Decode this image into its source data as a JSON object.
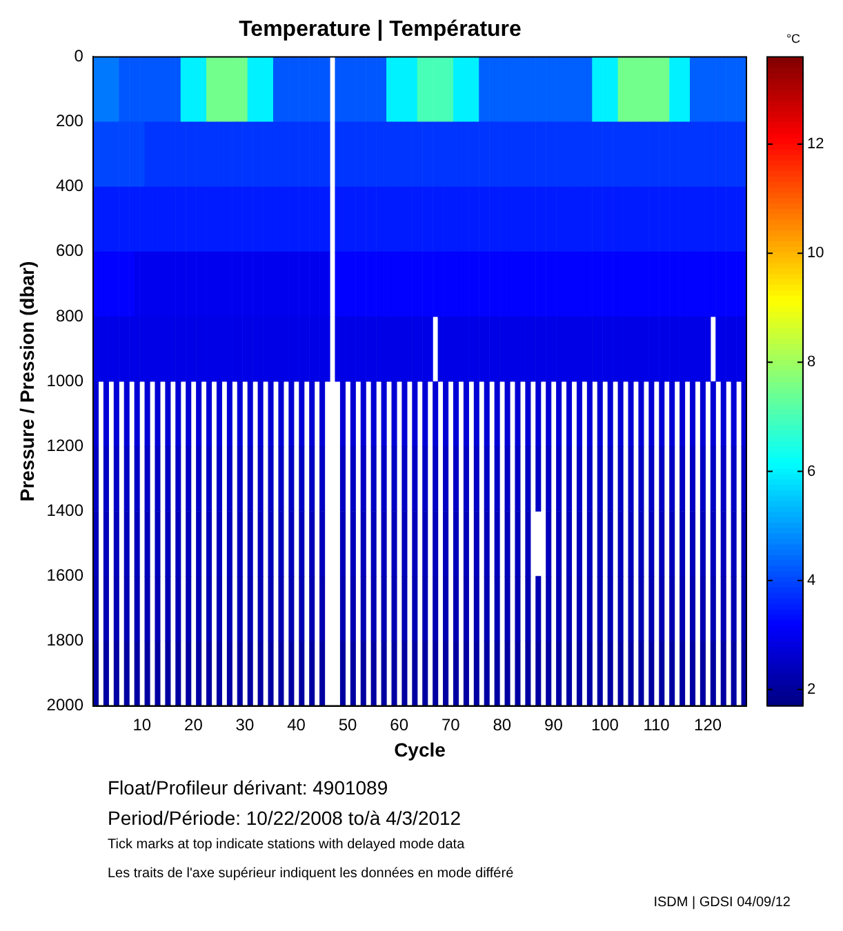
{
  "chart_data": {
    "type": "heatmap",
    "title": "Temperature | Température",
    "xlabel": "Cycle",
    "ylabel": "Pressure / Pression (dbar)",
    "clabel": "°C",
    "categories": [
      null,
      null,
      null,
      null,
      null,
      null,
      null,
      null,
      null,
      "10",
      null,
      null,
      null,
      null,
      null,
      null,
      null,
      null,
      null,
      "20",
      null,
      null,
      null,
      null,
      null,
      null,
      null,
      null,
      null,
      "30",
      null,
      null,
      null,
      null,
      null,
      null,
      null,
      null,
      null,
      "40",
      null,
      null,
      null,
      null,
      null,
      null,
      null,
      null,
      null,
      "50",
      null,
      null,
      null,
      null,
      null,
      null,
      null,
      null,
      null,
      "60",
      null,
      null,
      null,
      null,
      null,
      null,
      null,
      null,
      null,
      "70",
      null,
      null,
      null,
      null,
      null,
      null,
      null,
      null,
      null,
      "80",
      null,
      null,
      null,
      null,
      null,
      null,
      null,
      null,
      null,
      "90",
      null,
      null,
      null,
      null,
      null,
      null,
      null,
      null,
      null,
      "100",
      null,
      null,
      null,
      null,
      null,
      null,
      null,
      null,
      null,
      "110",
      null,
      null,
      null,
      null,
      null,
      null,
      null,
      null,
      null,
      "120",
      null,
      null,
      null,
      null,
      null,
      null,
      null
    ],
    "y": [
      100,
      300,
      500,
      700,
      900,
      1100,
      1300,
      1500,
      1700,
      1900
    ],
    "cells": [
      [
        4.6,
        4.6,
        4.6,
        4.6,
        4.6,
        4.2,
        4.2,
        4.2,
        4.2,
        4.2,
        4.2,
        4.2,
        4.2,
        4.2,
        4.2,
        4.2,
        4.2,
        6,
        6,
        6,
        6,
        6,
        7.5,
        7.5,
        7.5,
        7.5,
        7.5,
        7.5,
        7.5,
        7.5,
        6,
        6,
        6,
        6,
        6,
        4.2,
        4.2,
        4.2,
        4.2,
        4.2,
        4.2,
        4.2,
        4.2,
        4.2,
        4.2,
        4.2,
        null,
        4.2,
        4.2,
        4.2,
        4.2,
        4.2,
        4.2,
        4.2,
        4.2,
        4.2,
        4.2,
        6,
        6,
        6,
        6,
        6,
        6,
        7,
        7,
        7,
        7,
        7,
        7,
        7,
        6,
        6,
        6,
        6,
        6,
        4.3,
        4.3,
        4.3,
        4.3,
        4.3,
        4.3,
        4.3,
        4.3,
        4.3,
        4.3,
        4.3,
        4.3,
        4.3,
        4.3,
        4.3,
        4.3,
        4.3,
        4.3,
        4.3,
        4.3,
        4.3,
        4.3,
        6,
        6,
        6,
        6,
        6,
        7.5,
        7.5,
        7.5,
        7.5,
        7.5,
        7.5,
        7.5,
        7.5,
        7.5,
        7.5,
        6,
        6,
        6,
        6,
        4.3,
        4.3,
        4.3,
        4.3,
        4.3,
        4.3,
        4.3,
        4.3,
        4.3,
        4.3,
        4.3
      ],
      [
        4,
        4,
        4,
        4,
        4,
        4,
        4,
        4,
        4,
        4,
        3.8,
        3.8,
        3.8,
        3.8,
        3.8,
        3.8,
        3.8,
        3.8,
        3.8,
        3.8,
        3.8,
        3.8,
        3.8,
        3.8,
        3.8,
        3.8,
        3.8,
        3.8,
        3.8,
        3.8,
        3.8,
        3.8,
        3.8,
        3.8,
        3.8,
        3.8,
        3.8,
        3.8,
        3.8,
        3.8,
        3.8,
        3.8,
        3.8,
        3.8,
        3.8,
        3.8,
        null,
        3.8,
        3.8,
        3.8,
        3.8,
        3.8,
        3.8,
        3.8,
        3.8,
        3.8,
        3.8,
        3.8,
        3.8,
        3.8,
        3.8,
        3.8,
        3.8,
        3.8,
        3.8,
        3.8,
        3.8,
        3.8,
        3.8,
        3.8,
        3.8,
        3.8,
        3.8,
        3.8,
        3.8,
        3.8,
        3.8,
        3.8,
        3.8,
        3.8,
        3.8,
        3.8,
        3.8,
        3.8,
        3.8,
        3.8,
        3.8,
        3.8,
        3.8,
        3.8,
        3.8,
        3.8,
        3.8,
        3.8,
        3.8,
        3.8,
        3.8,
        3.8,
        3.8,
        3.8,
        3.8,
        3.8,
        3.8,
        3.8,
        3.8,
        3.8,
        3.8,
        3.8,
        3.8,
        3.8,
        3.8,
        3.8,
        3.8,
        3.8,
        3.8,
        3.8,
        3.8,
        3.8,
        3.8,
        3.8,
        3.8,
        3.8,
        3.8,
        3.8,
        3.8,
        3.8,
        3.8
      ],
      [
        3.5,
        3.5,
        3.5,
        3.5,
        3.5,
        3.5,
        3.5,
        3.5,
        3.5,
        3.5,
        3.5,
        3.5,
        3.5,
        3.5,
        3.5,
        3.5,
        3.5,
        3.5,
        3.5,
        3.5,
        3.5,
        3.5,
        3.5,
        3.5,
        3.5,
        3.5,
        3.5,
        3.5,
        3.5,
        3.5,
        3.5,
        3.5,
        3.5,
        3.5,
        3.5,
        3.5,
        3.5,
        3.5,
        3.5,
        3.5,
        3.5,
        3.5,
        3.5,
        3.5,
        3.5,
        3.5,
        null,
        3.5,
        3.5,
        3.5,
        3.5,
        3.5,
        3.5,
        3.5,
        3.5,
        3.5,
        3.5,
        3.5,
        3.5,
        3.5,
        3.5,
        3.5,
        3.5,
        3.5,
        3.5,
        3.5,
        3.5,
        3.5,
        3.5,
        3.5,
        3.5,
        3.5,
        3.5,
        3.5,
        3.5,
        3.5,
        3.5,
        3.5,
        3.5,
        3.5,
        3.5,
        3.5,
        3.5,
        3.5,
        3.5,
        3.5,
        3.5,
        3.5,
        3.5,
        3.5,
        3.5,
        3.5,
        3.5,
        3.5,
        3.5,
        3.5,
        3.5,
        3.5,
        3.5,
        3.5,
        3.5,
        3.5,
        3.5,
        3.5,
        3.5,
        3.5,
        3.5,
        3.5,
        3.5,
        3.5,
        3.5,
        3.5,
        3.5,
        3.5,
        3.5,
        3.5,
        3.5,
        3.5,
        3.5,
        3.5,
        3.5,
        3.5,
        3.5,
        3.5,
        3.5,
        3.5,
        3.5
      ],
      [
        3.2,
        3.2,
        3.2,
        3.2,
        3.2,
        3.2,
        3.2,
        3.2,
        3,
        3,
        3,
        3,
        3,
        3,
        3,
        3,
        3,
        3,
        3,
        3,
        3,
        3,
        3,
        3,
        3,
        3,
        3,
        3,
        3,
        3,
        3,
        3,
        3,
        3,
        3,
        3,
        3,
        3,
        3,
        3,
        3,
        3,
        3,
        3,
        3,
        3,
        null,
        3.2,
        3.2,
        3.2,
        3.2,
        3.2,
        3.2,
        3.2,
        3.2,
        3.2,
        3.2,
        3.2,
        3.2,
        3.2,
        3.2,
        3.2,
        3.2,
        3.2,
        3.2,
        3.2,
        3.2,
        3.2,
        3.2,
        3.2,
        3.2,
        3.2,
        3.2,
        3.2,
        3.2,
        3.2,
        3.2,
        3.2,
        3.2,
        3.2,
        3.2,
        3.2,
        3.2,
        3.2,
        3.2,
        3.2,
        3.2,
        3.2,
        3.2,
        3.2,
        3.2,
        3.2,
        3.2,
        3.2,
        3.2,
        3.2,
        3.2,
        3.2,
        3.2,
        3.2,
        3.2,
        3.2,
        3.2,
        3.2,
        3.2,
        3.2,
        3.2,
        3.2,
        3.2,
        3.2,
        3.2,
        3.2,
        3.2,
        3.2,
        3.2,
        3.2,
        3.2,
        3.2,
        3.2,
        3.2,
        3.2,
        3.2,
        3.2,
        3.2,
        3.2,
        3.2,
        3.2
      ],
      [
        2.9,
        2.9,
        2.9,
        2.9,
        2.9,
        2.9,
        2.9,
        2.9,
        2.9,
        2.9,
        2.9,
        2.9,
        2.9,
        2.9,
        2.9,
        2.9,
        2.9,
        2.9,
        2.9,
        2.9,
        2.9,
        2.9,
        2.9,
        2.9,
        2.9,
        2.9,
        2.9,
        2.9,
        2.9,
        2.9,
        2.9,
        2.9,
        2.9,
        2.9,
        2.9,
        2.9,
        2.9,
        2.9,
        2.9,
        2.9,
        2.9,
        2.9,
        2.9,
        2.9,
        2.9,
        2.9,
        null,
        2.9,
        2.9,
        2.9,
        2.9,
        2.9,
        2.9,
        2.9,
        2.9,
        2.9,
        2.9,
        2.9,
        2.9,
        2.9,
        2.9,
        2.9,
        2.9,
        2.9,
        2.9,
        2.9,
        null,
        2.9,
        2.9,
        2.9,
        2.9,
        2.9,
        2.9,
        2.9,
        2.9,
        2.9,
        2.9,
        2.9,
        2.9,
        2.9,
        2.9,
        2.9,
        2.9,
        2.9,
        2.9,
        2.9,
        2.9,
        2.9,
        2.9,
        2.9,
        2.9,
        2.9,
        2.9,
        2.9,
        2.9,
        2.9,
        2.9,
        2.9,
        2.9,
        2.9,
        2.9,
        2.9,
        2.9,
        2.9,
        2.9,
        2.9,
        2.9,
        2.9,
        2.9,
        2.9,
        2.9,
        2.9,
        2.9,
        2.9,
        2.9,
        2.9,
        2.9,
        2.9,
        2.9,
        2.9,
        null,
        2.9,
        2.9,
        2.9,
        2.9,
        2.9,
        2.9
      ],
      [
        2.7,
        null,
        2.7,
        null,
        2.7,
        null,
        2.7,
        null,
        2.7,
        null,
        2.7,
        null,
        2.7,
        null,
        2.7,
        null,
        2.7,
        null,
        2.7,
        null,
        2.7,
        null,
        2.7,
        null,
        2.7,
        null,
        2.7,
        null,
        2.7,
        null,
        2.7,
        null,
        2.7,
        null,
        2.7,
        null,
        2.7,
        null,
        2.7,
        null,
        2.7,
        null,
        2.7,
        null,
        2.7,
        null,
        null,
        null,
        2.7,
        null,
        2.7,
        null,
        2.7,
        null,
        2.7,
        null,
        2.7,
        null,
        2.7,
        null,
        2.7,
        null,
        2.7,
        null,
        2.7,
        null,
        2.7,
        null,
        2.7,
        null,
        2.7,
        null,
        2.7,
        null,
        2.7,
        null,
        2.7,
        null,
        2.7,
        null,
        2.7,
        null,
        2.7,
        null,
        2.7,
        null,
        2.7,
        null,
        2.7,
        null,
        2.7,
        null,
        2.7,
        null,
        2.7,
        null,
        2.7,
        null,
        2.7,
        null,
        2.7,
        null,
        2.7,
        null,
        2.7,
        null,
        2.7,
        null,
        2.7,
        null,
        2.7,
        null,
        2.7,
        null,
        2.7,
        null,
        2.7,
        null,
        2.7,
        null,
        2.7,
        null,
        2.7,
        null,
        2.7,
        null,
        2.7
      ],
      [
        2.5,
        null,
        2.5,
        null,
        2.5,
        null,
        2.5,
        null,
        2.5,
        null,
        2.5,
        null,
        2.5,
        null,
        2.5,
        null,
        2.5,
        null,
        2.5,
        null,
        2.5,
        null,
        2.5,
        null,
        2.5,
        null,
        2.5,
        null,
        2.5,
        null,
        2.5,
        null,
        2.5,
        null,
        2.5,
        null,
        2.5,
        null,
        2.5,
        null,
        2.5,
        null,
        2.5,
        null,
        2.5,
        null,
        null,
        null,
        2.5,
        null,
        2.5,
        null,
        2.5,
        null,
        2.5,
        null,
        2.5,
        null,
        2.5,
        null,
        2.5,
        null,
        2.5,
        null,
        2.5,
        null,
        2.5,
        null,
        2.5,
        null,
        2.5,
        null,
        2.5,
        null,
        2.5,
        null,
        2.5,
        null,
        2.5,
        null,
        2.5,
        null,
        2.5,
        null,
        2.5,
        null,
        2.5,
        null,
        2.5,
        null,
        2.5,
        null,
        2.5,
        null,
        2.5,
        null,
        2.5,
        null,
        2.5,
        null,
        2.5,
        null,
        2.5,
        null,
        2.5,
        null,
        2.5,
        null,
        2.5,
        null,
        2.5,
        null,
        2.5,
        null,
        2.5,
        null,
        2.5,
        null,
        2.5,
        null,
        2.5,
        null,
        2.5,
        null,
        2.5,
        null,
        2.5
      ],
      [
        2.4,
        null,
        2.4,
        null,
        2.4,
        null,
        2.4,
        null,
        2.4,
        null,
        2.4,
        null,
        2.4,
        null,
        2.4,
        null,
        2.4,
        null,
        2.4,
        null,
        2.4,
        null,
        2.4,
        null,
        2.4,
        null,
        2.4,
        null,
        2.4,
        null,
        2.4,
        null,
        2.4,
        null,
        2.4,
        null,
        2.4,
        null,
        2.4,
        null,
        2.4,
        null,
        2.4,
        null,
        2.4,
        null,
        null,
        null,
        2.4,
        null,
        2.4,
        null,
        2.4,
        null,
        2.4,
        null,
        2.4,
        null,
        2.4,
        null,
        2.4,
        null,
        2.4,
        null,
        2.4,
        null,
        2.4,
        null,
        2.4,
        null,
        2.4,
        null,
        2.4,
        null,
        2.4,
        null,
        2.4,
        null,
        2.4,
        null,
        2.4,
        null,
        2.4,
        null,
        2.4,
        null,
        null,
        null,
        2.4,
        null,
        2.4,
        null,
        2.4,
        null,
        2.4,
        null,
        2.4,
        null,
        2.4,
        null,
        2.4,
        null,
        2.4,
        null,
        2.4,
        null,
        2.4,
        null,
        2.4,
        null,
        2.4,
        null,
        2.4,
        null,
        2.4,
        null,
        2.4,
        null,
        2.4,
        null,
        2.4,
        null,
        2.4,
        null,
        2.4,
        null,
        2.4
      ],
      [
        2.3,
        null,
        2.3,
        null,
        2.3,
        null,
        2.3,
        null,
        2.3,
        null,
        2.3,
        null,
        2.3,
        null,
        2.3,
        null,
        2.3,
        null,
        2.3,
        null,
        2.3,
        null,
        2.3,
        null,
        2.3,
        null,
        2.3,
        null,
        2.3,
        null,
        2.3,
        null,
        2.3,
        null,
        2.3,
        null,
        2.3,
        null,
        2.3,
        null,
        2.3,
        null,
        2.3,
        null,
        2.3,
        null,
        null,
        null,
        2.3,
        null,
        2.3,
        null,
        2.3,
        null,
        2.3,
        null,
        2.3,
        null,
        2.3,
        null,
        2.3,
        null,
        2.3,
        null,
        2.3,
        null,
        2.3,
        null,
        2.3,
        null,
        2.3,
        null,
        2.3,
        null,
        2.3,
        null,
        2.3,
        null,
        2.3,
        null,
        2.3,
        null,
        2.3,
        null,
        2.3,
        null,
        2.3,
        null,
        2.3,
        null,
        2.3,
        null,
        2.3,
        null,
        2.3,
        null,
        2.3,
        null,
        2.3,
        null,
        2.3,
        null,
        2.3,
        null,
        2.3,
        null,
        2.3,
        null,
        2.3,
        null,
        2.3,
        null,
        2.3,
        null,
        2.3,
        null,
        2.3,
        null,
        2.3,
        null,
        2.3,
        null,
        2.3,
        null,
        2.3,
        null,
        2.3
      ],
      [
        2.1,
        null,
        2.1,
        null,
        2.1,
        null,
        2.1,
        null,
        2.1,
        null,
        2.1,
        null,
        2.1,
        null,
        2.1,
        null,
        2.1,
        null,
        2.1,
        null,
        2.1,
        null,
        2.1,
        null,
        2.1,
        null,
        2.1,
        null,
        2.1,
        null,
        2.1,
        null,
        2.1,
        null,
        2.1,
        null,
        2.1,
        null,
        2.1,
        null,
        2.1,
        null,
        2.1,
        null,
        2.1,
        null,
        null,
        null,
        2.1,
        null,
        2.1,
        null,
        2.1,
        null,
        2.1,
        null,
        2.1,
        null,
        2.1,
        null,
        2.1,
        null,
        2.1,
        null,
        2.1,
        null,
        2.1,
        null,
        2.1,
        null,
        2.1,
        null,
        2.1,
        null,
        2.1,
        null,
        2.1,
        null,
        2.1,
        null,
        2.1,
        null,
        2.1,
        null,
        2.1,
        null,
        2.1,
        null,
        2.1,
        null,
        2.1,
        null,
        2.1,
        null,
        2.1,
        null,
        2.1,
        null,
        2.1,
        null,
        2.1,
        null,
        2.1,
        null,
        2.1,
        null,
        2.1,
        null,
        2.1,
        null,
        2.1,
        null,
        2.1,
        null,
        2.1,
        null,
        2.1,
        null,
        2.1,
        null,
        2.1,
        null,
        2.1,
        null,
        2.1,
        null,
        2.1
      ]
    ],
    "ylim": [
      2000,
      0
    ],
    "yticks": [
      0,
      200,
      400,
      600,
      800,
      1000,
      1200,
      1400,
      1600,
      1800,
      2000
    ],
    "clim": [
      1.7,
      13.6
    ],
    "cticks": [
      2,
      4,
      6,
      8,
      10,
      12
    ],
    "annotations": [
      "Float/Profileur dérivant: 4901089",
      "Period/Période: 10/22/2008  to/à  4/3/2012",
      "Tick marks at top indicate stations with delayed mode data",
      "Les traits de l'axe supérieur indiquent les données en mode différé",
      "ISDM | GDSI 04/09/12"
    ]
  }
}
